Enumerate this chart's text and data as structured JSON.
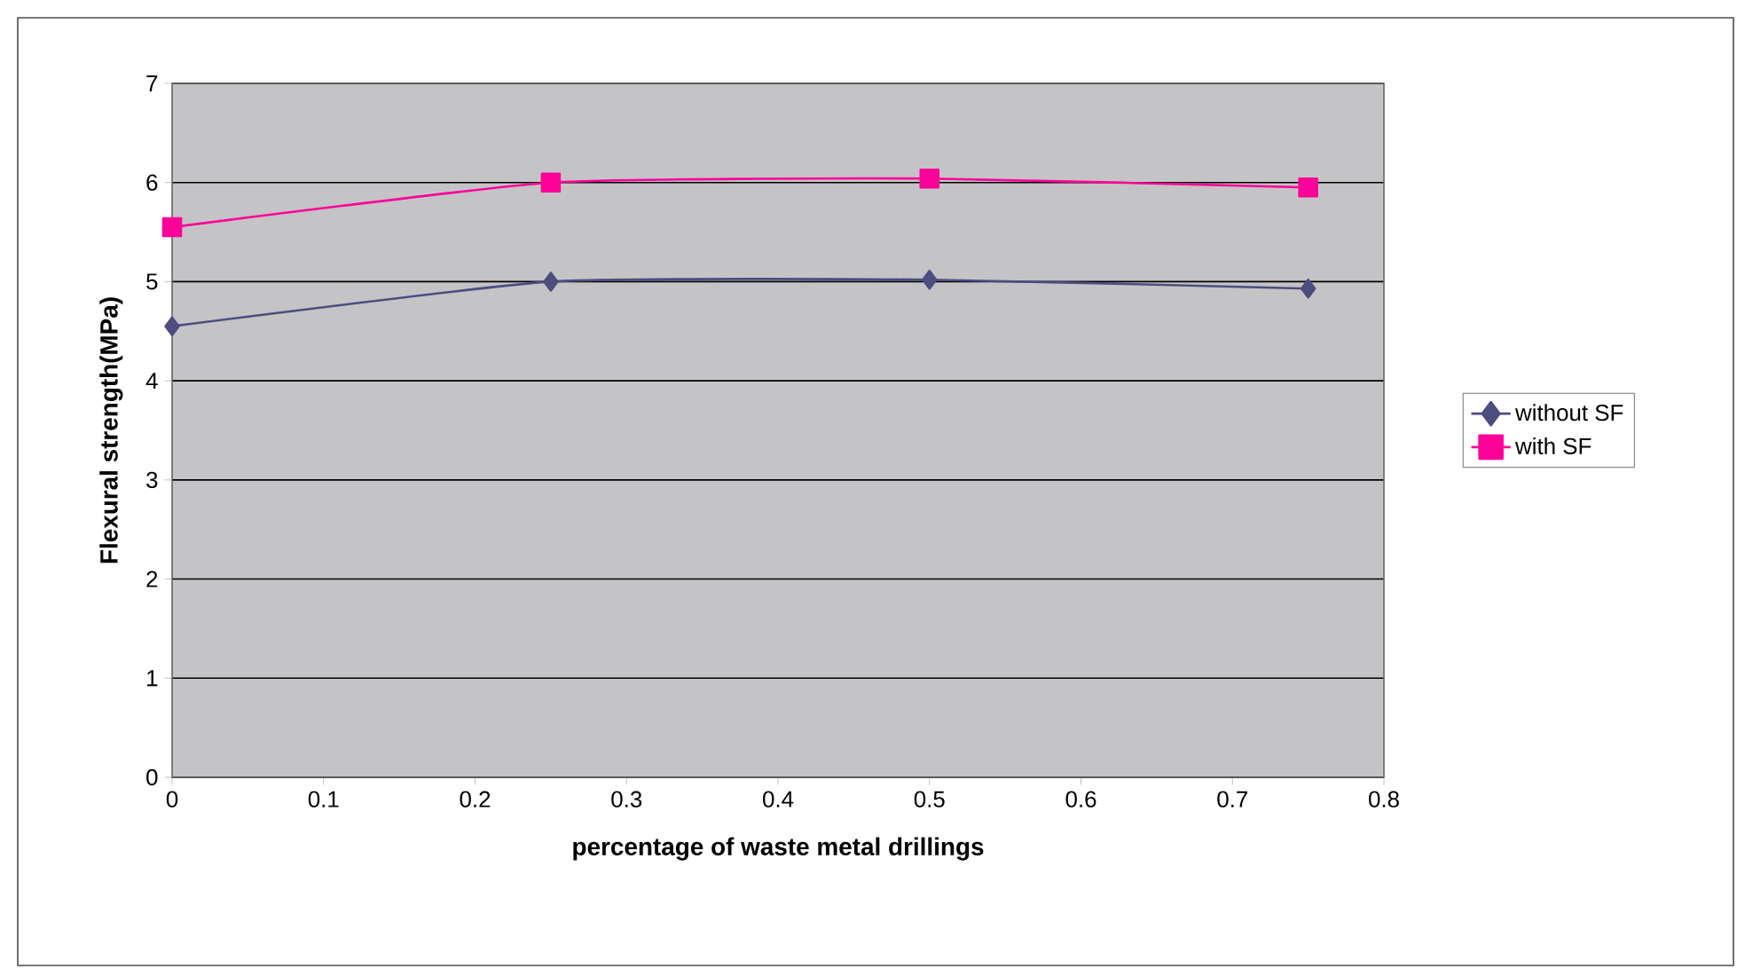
{
  "chart_data": {
    "type": "line",
    "xlabel": "percentage of waste metal drillings",
    "ylabel": "Flexural strength(MPa)",
    "x": [
      0,
      0.25,
      0.5,
      0.75
    ],
    "series": [
      {
        "name": "without SF",
        "color": "#4d4d80",
        "marker": "diamond",
        "values": [
          4.55,
          5.0,
          5.02,
          4.93
        ]
      },
      {
        "name": "with SF",
        "color": "#ff0099",
        "marker": "square",
        "values": [
          5.55,
          6.0,
          6.04,
          5.95
        ]
      }
    ],
    "xlim": [
      0,
      0.8
    ],
    "ylim": [
      0,
      7
    ],
    "xticks": [
      0,
      0.1,
      0.2,
      0.3,
      0.4,
      0.5,
      0.6,
      0.7,
      0.8
    ],
    "yticks": [
      0,
      1,
      2,
      3,
      4,
      5,
      6,
      7
    ],
    "grid": "y",
    "legend": "right",
    "line_style": "solid"
  }
}
